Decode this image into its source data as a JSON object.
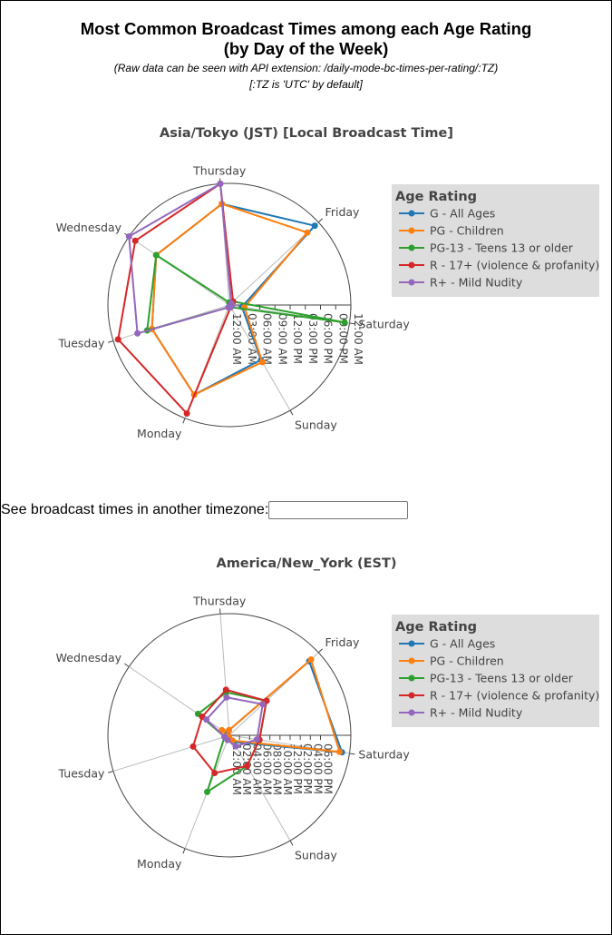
{
  "header": {
    "title_line1": "Most Common Broadcast Times among each Age Rating",
    "title_line2": "(by Day of the Week)",
    "note_line1": "(Raw data can be seen with API extension: /daily-mode-bc-times-per-rating/:TZ)",
    "note_line2": "[:TZ is 'UTC' by default]"
  },
  "timezone_prompt": {
    "label": "See broadcast times in another timezone:",
    "value": "",
    "placeholder": ""
  },
  "colors": {
    "G": "#1f77b4",
    "PG": "#ff7f0e",
    "PG13": "#2ca02c",
    "R": "#d62728",
    "Rplus": "#9467bd",
    "legend_bg": "#dddddd"
  },
  "chart_data": [
    {
      "type": "radar",
      "title": "Asia/Tokyo (JST) [Local Broadcast Time]",
      "axes": [
        "Sunday",
        "Monday",
        "Tuesday",
        "Wednesday",
        "Thursday",
        "Friday",
        "Saturday"
      ],
      "radial_range_hours": [
        0,
        24
      ],
      "radial_tick_labels": [
        "12:00 AM",
        "03:00 AM",
        "06:00 AM",
        "09:00 AM",
        "12:00 PM",
        "03:00 PM",
        "06:00 PM",
        "09:00 PM",
        "12:00 AM"
      ],
      "radial_tick_hours": [
        0,
        3,
        6,
        9,
        12,
        15,
        18,
        21,
        24
      ],
      "legend_title": "Age Rating",
      "legend_position": "top-right",
      "series": [
        {
          "name": "G - All Ages",
          "color_key": "G",
          "values": [
            12.5,
            19.0,
            16.0,
            17.5,
            20.0,
            23.0,
            2.5
          ]
        },
        {
          "name": "PG - Children",
          "color_key": "PG",
          "values": [
            13.0,
            19.0,
            16.0,
            17.5,
            20.0,
            21.0,
            3.0
          ]
        },
        {
          "name": "PG-13 - Teens 13 or older",
          "color_key": "PG13",
          "values": [
            0.5,
            0.5,
            17.0,
            17.5,
            0.5,
            1.0,
            23.0
          ]
        },
        {
          "name": "R - 17+ (violence & profanity)",
          "color_key": "R",
          "values": [
            0.5,
            23.0,
            23.0,
            22.5,
            24.0,
            1.0,
            0.5
          ]
        },
        {
          "name": "R+ - Mild Nudity",
          "color_key": "Rplus",
          "values": [
            0.5,
            0.5,
            19.0,
            24.0,
            24.0,
            0.5,
            0.5
          ]
        }
      ]
    },
    {
      "type": "radar",
      "title": "America/New_York (EST)",
      "axes": [
        "Sunday",
        "Monday",
        "Tuesday",
        "Wednesday",
        "Thursday",
        "Friday",
        "Saturday"
      ],
      "radial_range_hours": [
        0,
        24
      ],
      "radial_tick_labels": [
        "12:00 AM",
        "02:00 AM",
        "04:00 AM",
        "06:00 AM",
        "08:00 AM",
        "10:00 AM",
        "12:00 PM",
        "02:00 PM",
        "04:00 PM",
        "06:00 PM"
      ],
      "radial_tick_hours": [
        0,
        2,
        4,
        6,
        8,
        10,
        12,
        14,
        16,
        18
      ],
      "legend_title": "Age Rating",
      "legend_position": "top-right",
      "series": [
        {
          "name": "G - All Ages",
          "color_key": "G",
          "values": [
            1.5,
            0.3,
            0.7,
            0.5,
            1.0,
            21.5,
            22.5
          ]
        },
        {
          "name": "PG - Children",
          "color_key": "PG",
          "values": [
            1.2,
            0.3,
            0.5,
            1.8,
            1.0,
            22.0,
            22.0
          ]
        },
        {
          "name": "PG-13 - Teens 13 or older",
          "color_key": "PG13",
          "values": [
            7.0,
            12.0,
            1.0,
            7.5,
            8.5,
            10.0,
            6.0
          ]
        },
        {
          "name": "R - 17+ (violence & profanity)",
          "color_key": "R",
          "values": [
            7.0,
            8.0,
            7.5,
            6.5,
            9.0,
            10.0,
            6.0
          ]
        },
        {
          "name": "R+ - Mild Nudity",
          "color_key": "Rplus",
          "values": [
            2.5,
            1.0,
            1.0,
            5.5,
            7.5,
            9.0,
            5.5
          ]
        }
      ]
    }
  ]
}
